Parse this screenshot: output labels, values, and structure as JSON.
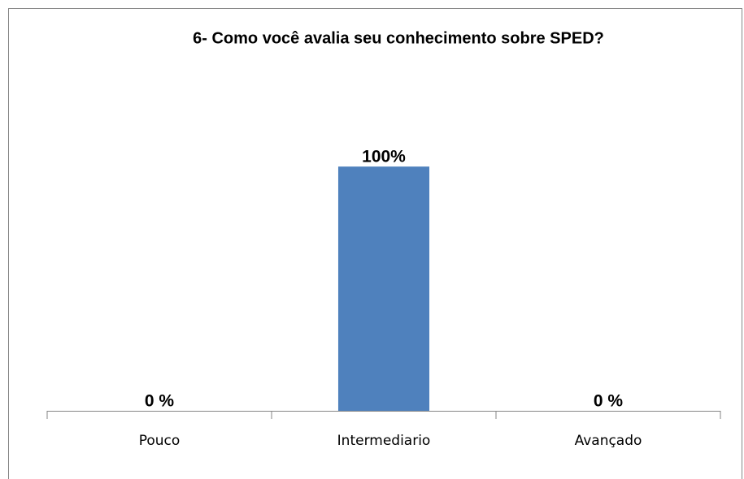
{
  "chart_data": {
    "type": "bar",
    "title": "6- Como você avalia seu conhecimento sobre SPED?",
    "categories": [
      "Pouco",
      "Intermediario",
      "Avançado"
    ],
    "values": [
      0,
      100,
      0
    ],
    "value_labels": [
      "0 %",
      "100%",
      "0 %"
    ],
    "color": "#4f81bd",
    "ylim": [
      0,
      120
    ]
  }
}
